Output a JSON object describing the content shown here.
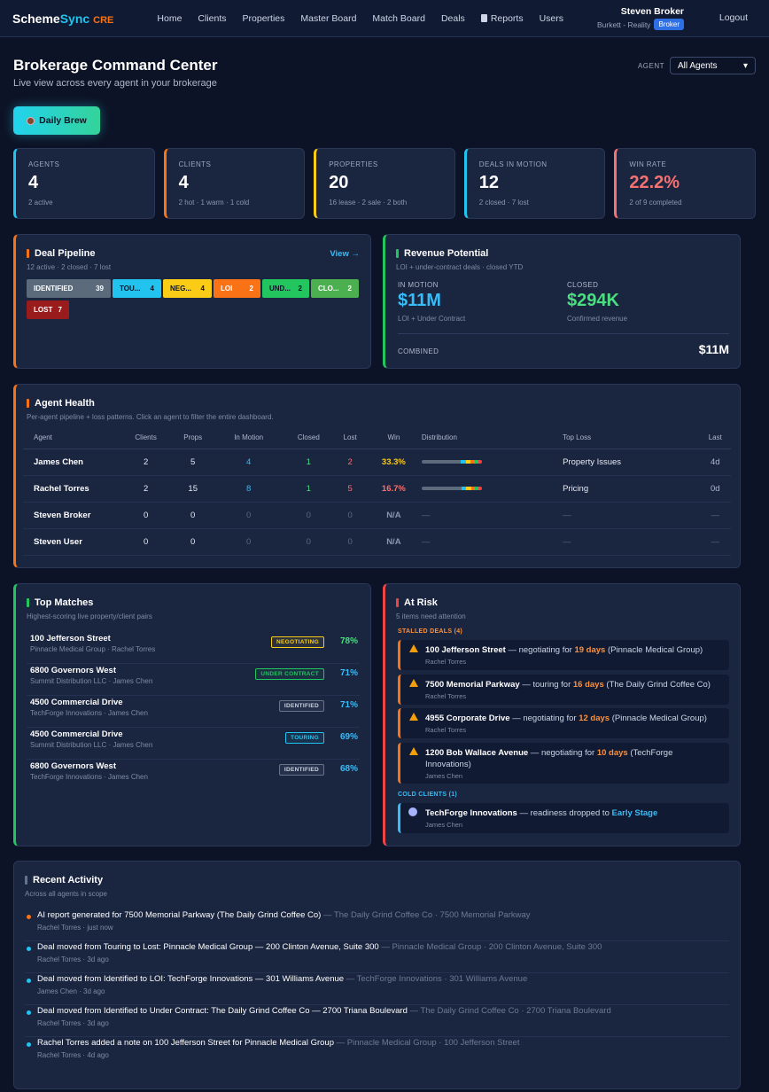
{
  "nav": {
    "logo_part1": "Scheme",
    "logo_part2": "Sync",
    "logo_part3": "CRE",
    "links": [
      "Home",
      "Clients",
      "Properties",
      "Master Board",
      "Match Board",
      "Deals",
      "Reports",
      "Users"
    ],
    "user_name": "Steven Broker",
    "user_org": "Burkett - Reality",
    "user_role": "Broker",
    "logout": "Logout"
  },
  "header": {
    "title": "Brokerage Command Center",
    "subtitle": "Live view across every agent in your brokerage",
    "agent_label": "AGENT",
    "agent_value": "All Agents",
    "daily_brew": "Daily Brew"
  },
  "kpis": [
    {
      "label": "AGENTS",
      "value": "4",
      "sub": "2 active",
      "color": "#22c3ee"
    },
    {
      "label": "CLIENTS",
      "value": "4",
      "sub": "2 hot · 1 warm · 1 cold",
      "color": "#f97316"
    },
    {
      "label": "PROPERTIES",
      "value": "20",
      "sub": "16 lease · 2 sale · 2 both",
      "color": "#facc15"
    },
    {
      "label": "DEALS IN MOTION",
      "value": "12",
      "sub": "2 closed · 7 lost",
      "color": "#22c3ee"
    },
    {
      "label": "WIN RATE",
      "value": "22.2%",
      "sub": "2 of 9 completed",
      "color": "#f87171"
    }
  ],
  "pipeline": {
    "title": "Deal Pipeline",
    "sub": "12 active · 2 closed · 7 lost",
    "view": "View →",
    "stages": [
      {
        "label": "IDENTIFIED",
        "count": "39",
        "bg": "#5b6b7c",
        "fg": "#ffffff"
      },
      {
        "label": "TOU...",
        "count": "4",
        "bg": "#22c3ee",
        "fg": "#0d1326"
      },
      {
        "label": "NEG...",
        "count": "4",
        "bg": "#facc15",
        "fg": "#0d1326"
      },
      {
        "label": "LOI",
        "count": "2",
        "bg": "#f97316",
        "fg": "#ffffff"
      },
      {
        "label": "UND...",
        "count": "2",
        "bg": "#22c55e",
        "fg": "#0d1326"
      },
      {
        "label": "CLO...",
        "count": "2",
        "bg": "#4caf50",
        "fg": "#ffffff"
      }
    ],
    "lost": {
      "label": "LOST",
      "count": "7",
      "bg": "#991b1b",
      "fg": "#ffffff"
    }
  },
  "revenue": {
    "title": "Revenue Potential",
    "sub": "LOI + under-contract deals · closed YTD",
    "motion_label": "IN MOTION",
    "motion_value": "$11M",
    "motion_sub": "LOI + Under Contract",
    "closed_label": "CLOSED",
    "closed_value": "$294K",
    "closed_sub": "Confirmed revenue",
    "combined_label": "COMBINED",
    "combined_value": "$11M"
  },
  "agent_health": {
    "title": "Agent Health",
    "sub": "Per-agent pipeline + loss patterns. Click an agent to filter the entire dashboard.",
    "columns": [
      "Agent",
      "Clients",
      "Props",
      "In Motion",
      "Closed",
      "Lost",
      "Win",
      "Distribution",
      "Top Loss",
      "Last"
    ],
    "rows": [
      {
        "agent": "James Chen",
        "clients": "2",
        "props": "5",
        "motion": "4",
        "closed": "1",
        "lost": "2",
        "win": "33.3%",
        "win_color": "#facc15",
        "has_dist": true,
        "top_loss": "Property Issues",
        "last": "4d"
      },
      {
        "agent": "Rachel Torres",
        "clients": "2",
        "props": "15",
        "motion": "8",
        "closed": "1",
        "lost": "5",
        "win": "16.7%",
        "win_color": "#f87171",
        "has_dist": true,
        "top_loss": "Pricing",
        "last": "0d"
      },
      {
        "agent": "Steven Broker",
        "clients": "0",
        "props": "0",
        "motion": "0",
        "closed": "0",
        "lost": "0",
        "win": "N/A",
        "win_color": "#8a96ae",
        "has_dist": false,
        "top_loss": "—",
        "last": "—",
        "dist_text": "—"
      },
      {
        "agent": "Steven User",
        "clients": "0",
        "props": "0",
        "motion": "0",
        "closed": "0",
        "lost": "0",
        "win": "N/A",
        "win_color": "#8a96ae",
        "has_dist": false,
        "top_loss": "—",
        "last": "—",
        "dist_text": "—"
      }
    ]
  },
  "top_matches": {
    "title": "Top Matches",
    "sub": "Highest-scoring live property/client pairs",
    "items": [
      {
        "property": "100 Jefferson Street",
        "detail": "Pinnacle Medical Group · Rachel Torres",
        "tag": "NEGOTIATING",
        "tag_color": "#facc15",
        "score": "78%",
        "score_color": "#4ade80"
      },
      {
        "property": "6800 Governors West",
        "detail": "Summit Distribution LLC · James Chen",
        "tag": "UNDER CONTRACT",
        "tag_color": "#22c55e",
        "score": "71%",
        "score_color": "#38bdf8"
      },
      {
        "property": "4500 Commercial Drive",
        "detail": "TechForge Innovations · James Chen",
        "tag": "IDENTIFIED",
        "tag_color": "#cbd5e1",
        "score": "71%",
        "score_color": "#38bdf8"
      },
      {
        "property": "4500 Commercial Drive",
        "detail": "Summit Distribution LLC · James Chen",
        "tag": "TOURING",
        "tag_color": "#22c3ee",
        "score": "69%",
        "score_color": "#38bdf8"
      },
      {
        "property": "6800 Governors West",
        "detail": "TechForge Innovations · James Chen",
        "tag": "IDENTIFIED",
        "tag_color": "#cbd5e1",
        "score": "68%",
        "score_color": "#38bdf8"
      }
    ]
  },
  "at_risk": {
    "title": "At Risk",
    "sub": "5 items need attention",
    "stalled_label": "STALLED DEALS (4)",
    "stalled": [
      {
        "property": "100 Jefferson Street",
        "mid": " — negotiating for ",
        "days": "19 days",
        "tail": " (Pinnacle Medical Group)",
        "agent": "Rachel Torres"
      },
      {
        "property": "7500 Memorial Parkway",
        "mid": " — touring for ",
        "days": "16 days",
        "tail": " (The Daily Grind Coffee Co)",
        "agent": "Rachel Torres"
      },
      {
        "property": "4955 Corporate Drive",
        "mid": " — negotiating for ",
        "days": "12 days",
        "tail": " (Pinnacle Medical Group)",
        "agent": "Rachel Torres"
      },
      {
        "property": "1200 Bob Wallace Avenue",
        "mid": " — negotiating for ",
        "days": "10 days",
        "tail": " (TechForge Innovations)",
        "agent": "James Chen"
      }
    ],
    "cold_label": "COLD CLIENTS (1)",
    "cold": {
      "client": "TechForge Innovations",
      "mid": " — readiness dropped to ",
      "stage": "Early Stage",
      "agent": "James Chen"
    }
  },
  "activity": {
    "title": "Recent Activity",
    "sub": "Across all agents in scope",
    "items": [
      {
        "text": "AI report generated for 7500 Memorial Parkway (The Daily Grind Coffee Co)",
        "ctx": " — The Daily Grind Coffee Co · 7500 Memorial Parkway",
        "meta": "Rachel Torres · just now",
        "dot": "#f97316"
      },
      {
        "text": "Deal moved from Touring to Lost: Pinnacle Medical Group — 200 Clinton Avenue, Suite 300",
        "ctx": " — Pinnacle Medical Group · 200 Clinton Avenue, Suite 300",
        "meta": "Rachel Torres · 3d ago",
        "dot": "#22c3ee"
      },
      {
        "text": "Deal moved from Identified to LOI: TechForge Innovations — 301 Williams Avenue",
        "ctx": " — TechForge Innovations · 301 Williams Avenue",
        "meta": "James Chen · 3d ago",
        "dot": "#22c3ee"
      },
      {
        "text": "Deal moved from Identified to Under Contract: The Daily Grind Coffee Co — 2700 Triana Boulevard",
        "ctx": " — The Daily Grind Coffee Co · 2700 Triana Boulevard",
        "meta": "Rachel Torres · 3d ago",
        "dot": "#22c3ee"
      },
      {
        "text": "Rachel Torres added a note on 100 Jefferson Street for Pinnacle Medical Group",
        "ctx": " — Pinnacle Medical Group · 100 Jefferson Street",
        "meta": "Rachel Torres · 4d ago",
        "dot": "#22c3ee"
      }
    ]
  }
}
